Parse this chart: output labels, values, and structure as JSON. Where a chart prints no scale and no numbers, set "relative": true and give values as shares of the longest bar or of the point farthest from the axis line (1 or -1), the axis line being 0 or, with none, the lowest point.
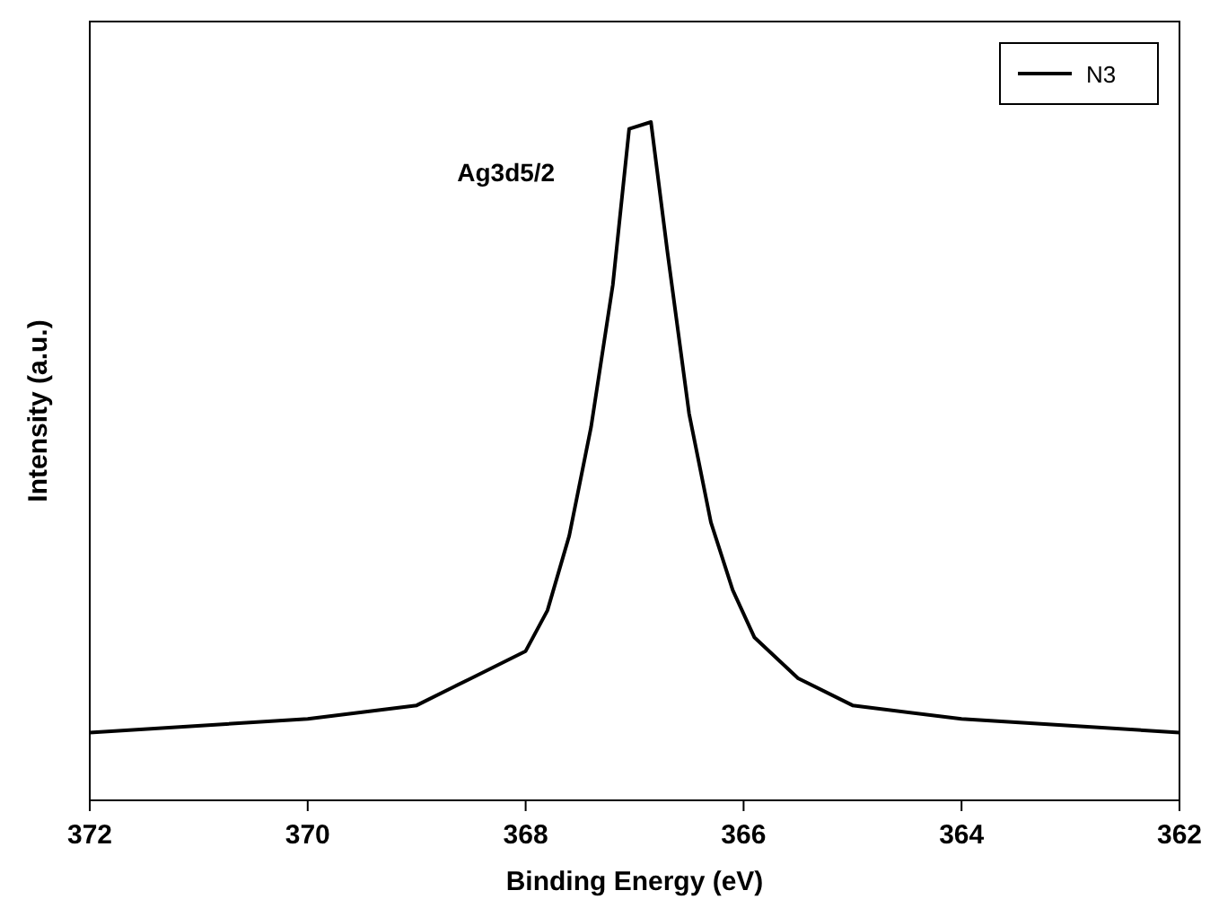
{
  "chart_data": {
    "type": "line",
    "xlabel": "Binding Energy (eV)",
    "ylabel": "Intensity (a.u.)",
    "relative": true,
    "xlim": [
      372,
      362
    ],
    "xticks": [
      372,
      370,
      368,
      366,
      364,
      362
    ],
    "x": [
      372,
      370,
      369,
      368.5,
      368,
      367.8,
      367.6,
      367.4,
      367.2,
      367.05,
      366.85,
      366.7,
      366.5,
      366.3,
      366.1,
      365.9,
      365.5,
      365,
      364,
      362
    ],
    "series": [
      {
        "name": "N3",
        "color": "#000000",
        "values": [
          0.1,
          0.12,
          0.14,
          0.18,
          0.22,
          0.28,
          0.39,
          0.55,
          0.76,
          0.99,
          1,
          0.81,
          0.57,
          0.41,
          0.31,
          0.24,
          0.18,
          0.14,
          0.12,
          0.1
        ]
      }
    ],
    "annotations": [
      "Ag3d5/2"
    ],
    "legend": "top right",
    "marker": "none",
    "line_style": "solid",
    "grid": false
  }
}
